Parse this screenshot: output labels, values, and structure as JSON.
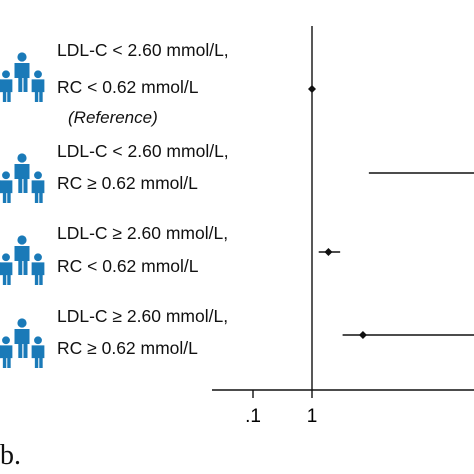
{
  "chart_data": {
    "type": "forest",
    "x_scale": "log",
    "reference_value": 1,
    "x_ticks": [
      {
        "value": 0.1,
        "label": ".1"
      },
      {
        "value": 1,
        "label": "1"
      }
    ],
    "rows": [
      {
        "line1": "LDL-C < 2.60 mmol/L,",
        "line2": "RC < 0.62 mmol/L",
        "note": "(Reference)",
        "estimate": 1.0,
        "ci_low": 1.0,
        "ci_high": 1.0
      },
      {
        "line1": "LDL-C < 2.60 mmol/L,",
        "line2": "RC ≥ 0.62 mmol/L",
        "note": "",
        "estimate": null,
        "ci_low": 9.2,
        "ci_high": null
      },
      {
        "line1": "LDL-C ≥ 2.60 mmol/L,",
        "line2": "RC < 0.62 mmol/L",
        "note": "",
        "estimate": 1.9,
        "ci_low": 1.3,
        "ci_high": 3.0
      },
      {
        "line1": "LDL-C ≥ 2.60 mmol/L,",
        "line2": "RC ≥ 0.62 mmol/L",
        "note": "",
        "estimate": 7.3,
        "ci_low": 3.3,
        "ci_high": null
      }
    ],
    "icon_color": "#1a7ab8"
  },
  "panel_label": "b."
}
